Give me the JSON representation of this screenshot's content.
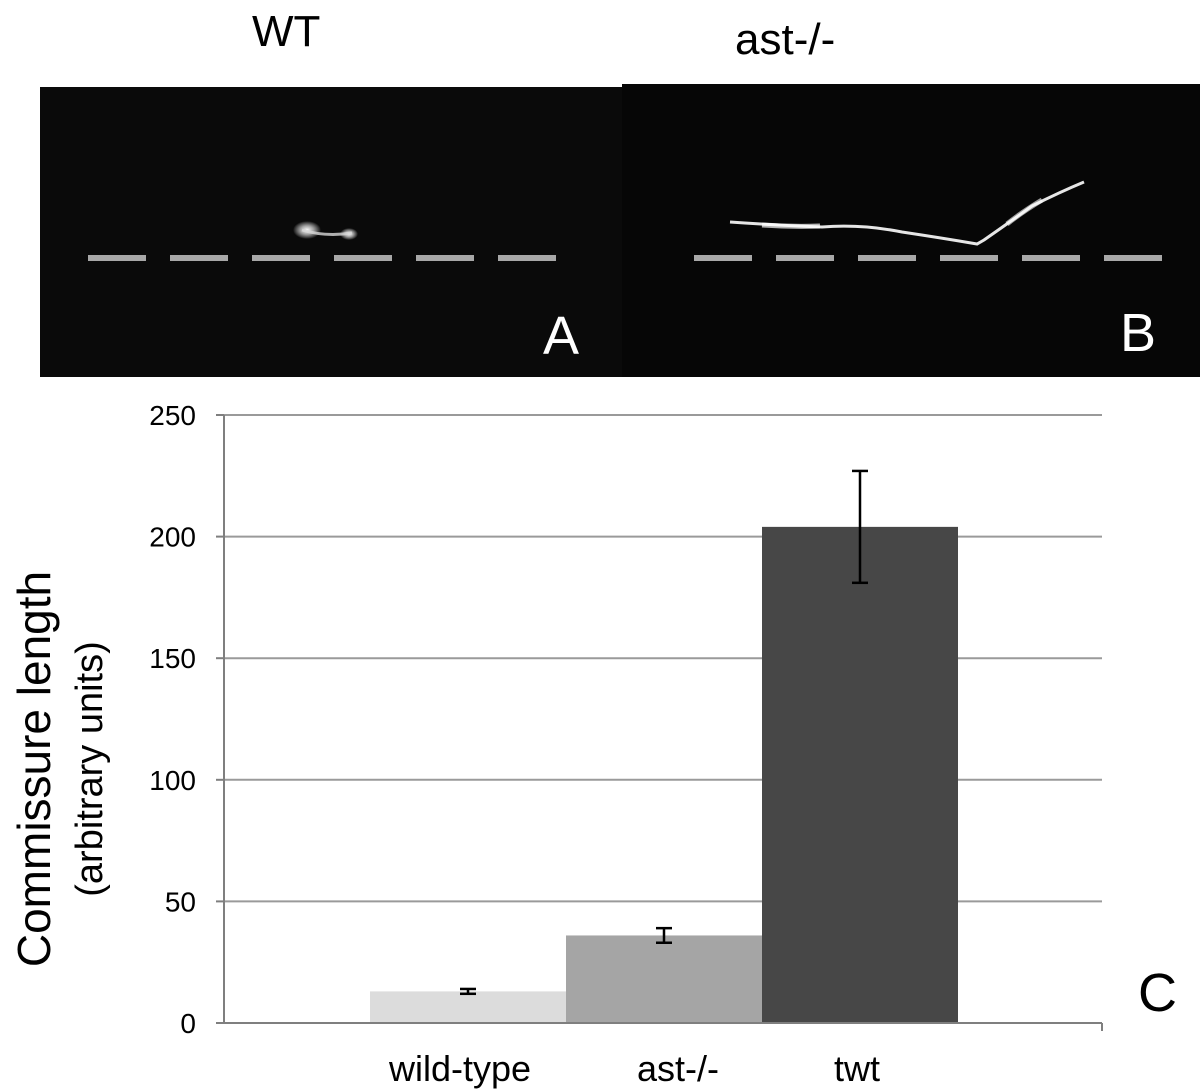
{
  "panels": [
    {
      "title": "WT",
      "letter": "A",
      "trace": "short-bright-spot"
    },
    {
      "title": "ast-/-",
      "letter": "B",
      "trace": "long-midline-crossing-axon"
    }
  ],
  "chart_letter": "C",
  "colors": {
    "wild_type_bar": "#dcdcdc",
    "ast_bar": "#a5a5a5",
    "twt_bar": "#474747",
    "gridline": "#9a9a9a",
    "axis": "#7f7f7f",
    "midline_dash": "#a8a8a8"
  },
  "chart_data": {
    "type": "bar",
    "categories": [
      "wild-type",
      "ast-/-",
      "twt"
    ],
    "values": [
      13,
      36,
      204
    ],
    "errors": [
      1,
      3,
      23
    ],
    "ylabel": [
      "Commissure length",
      "(arbitrary units)"
    ],
    "ylim": [
      0,
      250
    ],
    "yticks": [
      0,
      50,
      100,
      150,
      200,
      250
    ],
    "grid": true
  }
}
